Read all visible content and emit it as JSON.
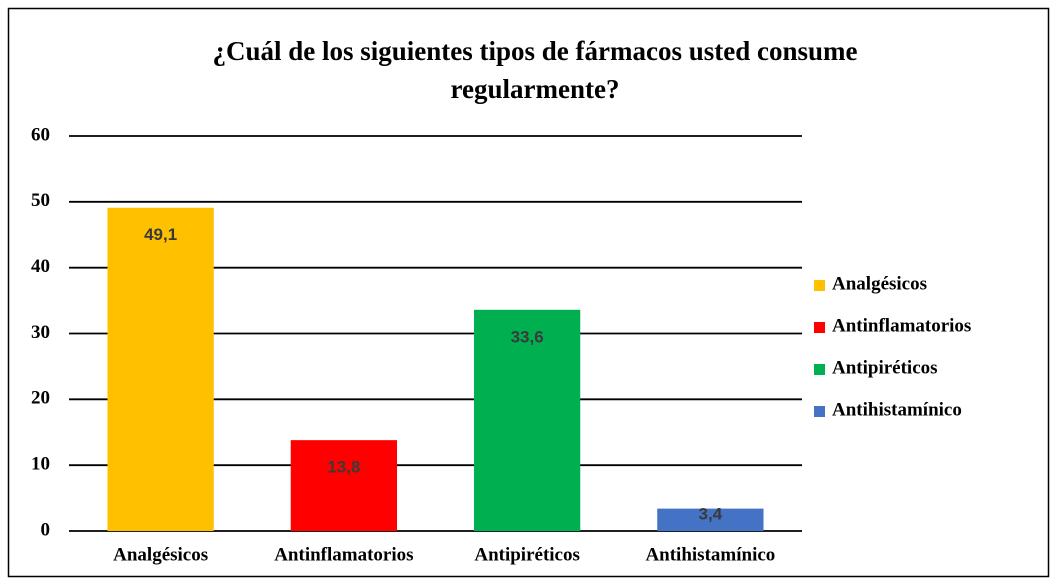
{
  "chart_data": {
    "type": "bar",
    "title": "¿Cuál de los siguientes tipos de fármacos usted consume regularmente?",
    "categories": [
      "Analgésicos",
      "Antinflamatorios",
      "Antipiréticos",
      "Antihistamínico"
    ],
    "values": [
      49.1,
      13.8,
      33.6,
      3.4
    ],
    "value_labels": [
      "49,1",
      "13,8",
      "33,6",
      "3,4"
    ],
    "colors": [
      "#ffc000",
      "#ff0000",
      "#00b050",
      "#4472c4"
    ],
    "ylim": [
      0,
      60
    ],
    "yticks": [
      0,
      10,
      20,
      30,
      40,
      50,
      60
    ],
    "grid": true,
    "legend": "right"
  }
}
